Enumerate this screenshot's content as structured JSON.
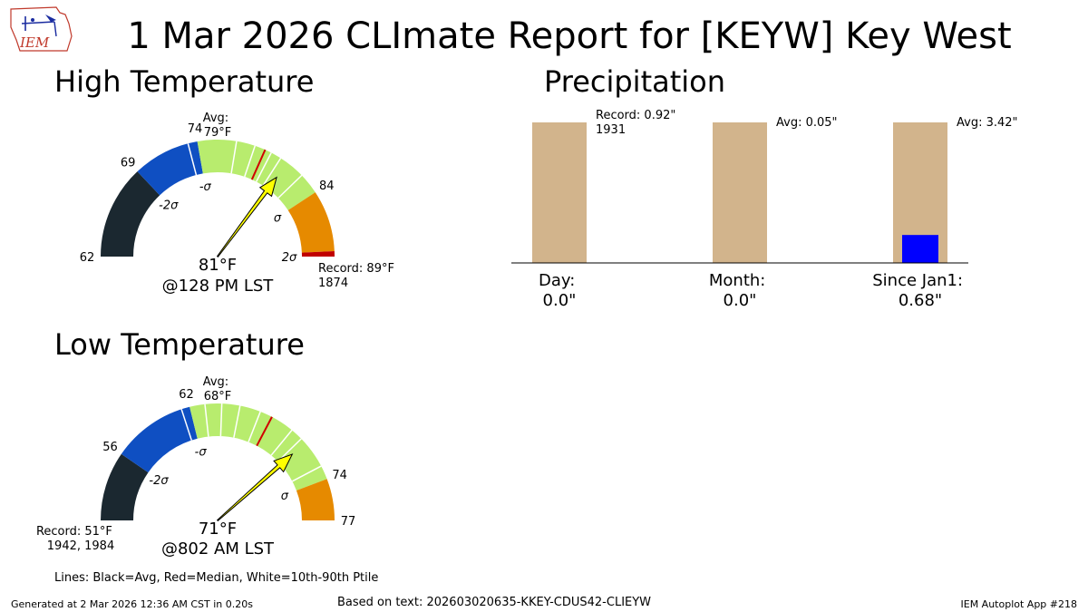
{
  "title": "1 Mar 2026 CLImate Report for [KEYW] Key West",
  "logo": {
    "icon": "iem-logo-icon",
    "text": "IEM"
  },
  "footer": {
    "generated": "Generated at 2 Mar 2026 12:36 AM CST in 0.20s",
    "based_on": "Based on text: 202603020635-KKEY-CDUS42-CLIEYW",
    "app": "IEM Autoplot App #218"
  },
  "chart_data": [
    {
      "type": "gauge",
      "title": "High Temperature",
      "range": [
        62,
        89
      ],
      "value": 81,
      "value_label": "81°F",
      "time_label": "@128 PM LST",
      "avg": 79,
      "avg_label": [
        "Avg:",
        "79°F"
      ],
      "record_label": [
        "Record: 89°F",
        "1874"
      ],
      "tick_labels": [
        {
          "value": 62,
          "text": "62"
        },
        {
          "value": 69,
          "text": "69"
        },
        {
          "value": 74,
          "text": "74"
        },
        {
          "value": 84,
          "text": "84"
        }
      ],
      "sigma_labels": [
        {
          "value": 69,
          "text": "-2σ"
        },
        {
          "value": 74,
          "text": "-σ"
        },
        {
          "value": 84,
          "text": "σ"
        },
        {
          "value": 89,
          "text": "2σ"
        }
      ],
      "bands": [
        {
          "from": 62,
          "to": 69,
          "color": "#1b2830"
        },
        {
          "from": 69,
          "to": 74,
          "color": "#0f4fc2"
        },
        {
          "from": 74,
          "to": 84,
          "color": "#b8ec6e"
        },
        {
          "from": 84,
          "to": 88.6,
          "color": "#e68a00"
        },
        {
          "from": 88.6,
          "to": 89,
          "color": "#c00000"
        }
      ],
      "white_lines": [
        73.3,
        76.9,
        78.3,
        79.6,
        80.4,
        82.4
      ],
      "median": 79.1
    },
    {
      "type": "gauge",
      "title": "Low Temperature",
      "range": [
        51,
        77
      ],
      "value": 71,
      "value_label": "71°F",
      "time_label": "@802 AM LST",
      "avg": 68,
      "avg_label": [
        "Avg:",
        "68°F"
      ],
      "record_label": [
        "Record: 51°F",
        "1942, 1984"
      ],
      "tick_labels": [
        {
          "value": 56,
          "text": "56"
        },
        {
          "value": 62,
          "text": "62"
        },
        {
          "value": 74,
          "text": "74"
        },
        {
          "value": 77,
          "text": "77"
        }
      ],
      "sigma_labels": [
        {
          "value": 56,
          "text": "-2σ"
        },
        {
          "value": 62,
          "text": "-σ"
        },
        {
          "value": 74,
          "text": "σ"
        }
      ],
      "bands": [
        {
          "from": 51,
          "to": 56,
          "color": "#1b2830"
        },
        {
          "from": 56,
          "to": 62,
          "color": "#0f4fc2"
        },
        {
          "from": 62,
          "to": 74,
          "color": "#b8ec6e"
        },
        {
          "from": 74,
          "to": 77,
          "color": "#e68a00"
        }
      ],
      "white_lines": [
        61.4,
        63.1,
        64.3,
        65.6,
        67.1,
        69.7,
        70.6,
        73.0
      ],
      "median": 68.0
    },
    {
      "type": "bar",
      "title": "Precipitation",
      "categories": [
        {
          "name": "Day:",
          "value_label": "0.0\""
        },
        {
          "name": "Month:",
          "value_label": "0.0\""
        },
        {
          "name": "Since Jan1:",
          "value_label": "0.68\""
        }
      ],
      "reference_labels": [
        [
          "Record: 0.92\"",
          "1931"
        ],
        [
          "Avg: 0.05\""
        ],
        [
          "Avg: 3.42\""
        ]
      ],
      "reference_fraction": [
        1.0,
        1.0,
        1.0
      ],
      "observed_fraction": [
        0.0,
        0.0,
        0.199
      ],
      "colors": {
        "reference": "#d2b48c",
        "observed": "#0000ff"
      }
    }
  ],
  "legend_note": "Lines: Black=Avg, Red=Median, White=10th-90th Ptile"
}
